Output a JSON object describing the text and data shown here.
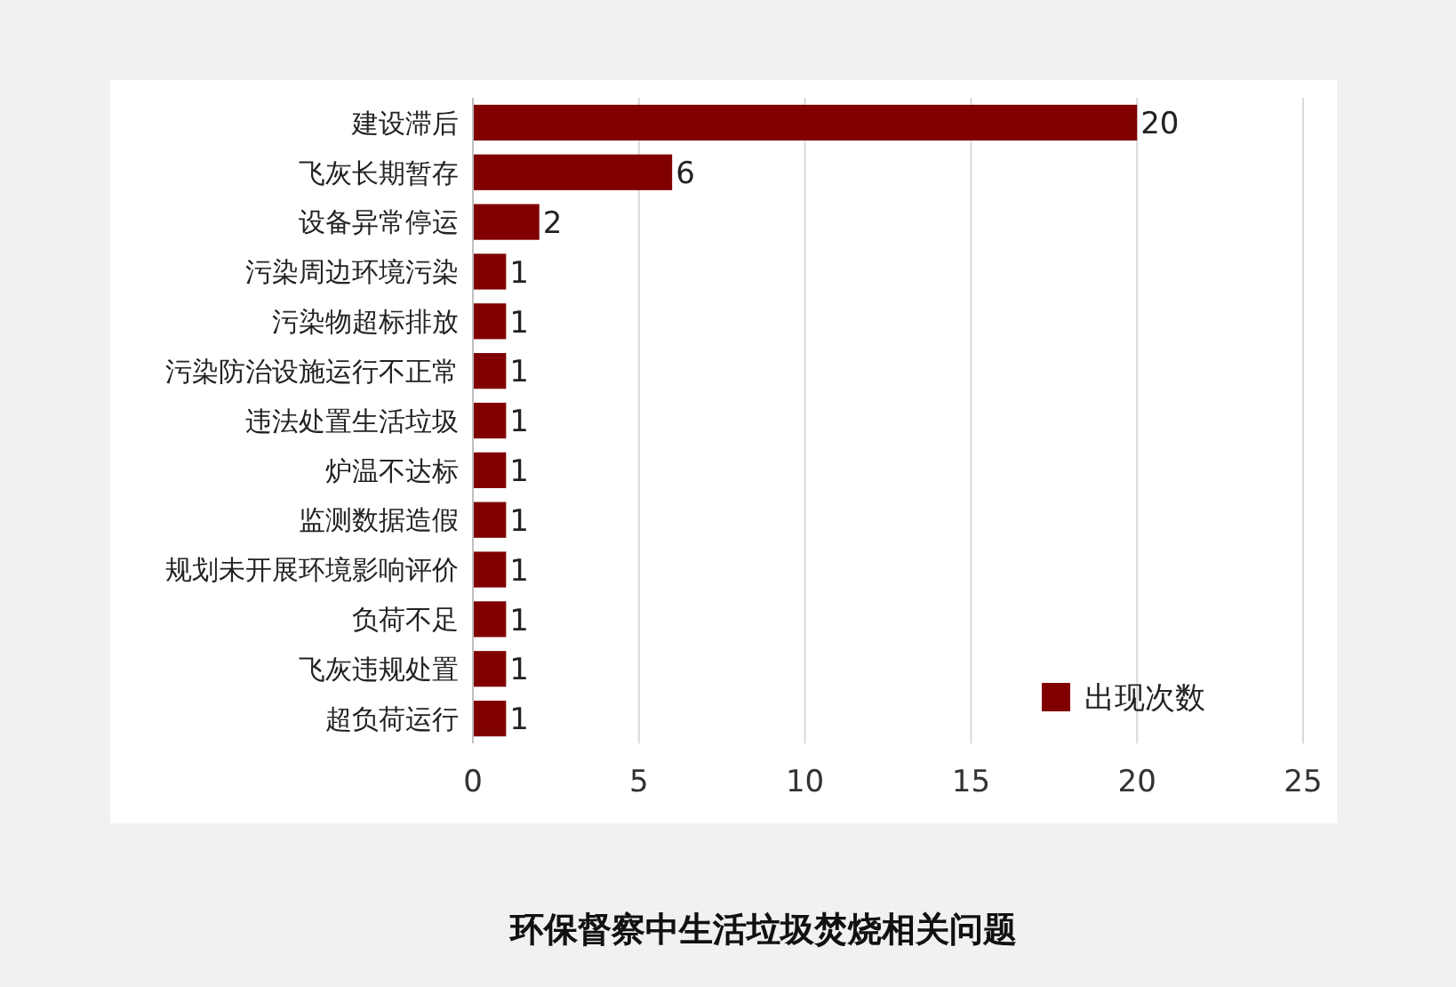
{
  "chart_data": {
    "type": "bar",
    "orientation": "horizontal",
    "title": "环保督察中生活垃圾焚烧相关问题",
    "categories": [
      "建设滞后",
      "飞灰长期暂存",
      "设备异常停运",
      "污染周边环境污染",
      "污染物超标排放",
      "污染防治设施运行不正常",
      "违法处置生活垃圾",
      "炉温不达标",
      "监测数据造假",
      "规划未开展环境影响评价",
      "负荷不足",
      "飞灰违规处置",
      "超负荷运行"
    ],
    "series": [
      {
        "name": "出现次数",
        "color": "#800000",
        "values": [
          20,
          6,
          2,
          1,
          1,
          1,
          1,
          1,
          1,
          1,
          1,
          1,
          1
        ]
      }
    ],
    "xlim": [
      0,
      25
    ],
    "xticks": [
      0,
      5,
      10,
      15,
      20,
      25
    ],
    "grid": "x",
    "legend": "bottom right",
    "data_labels": true
  }
}
